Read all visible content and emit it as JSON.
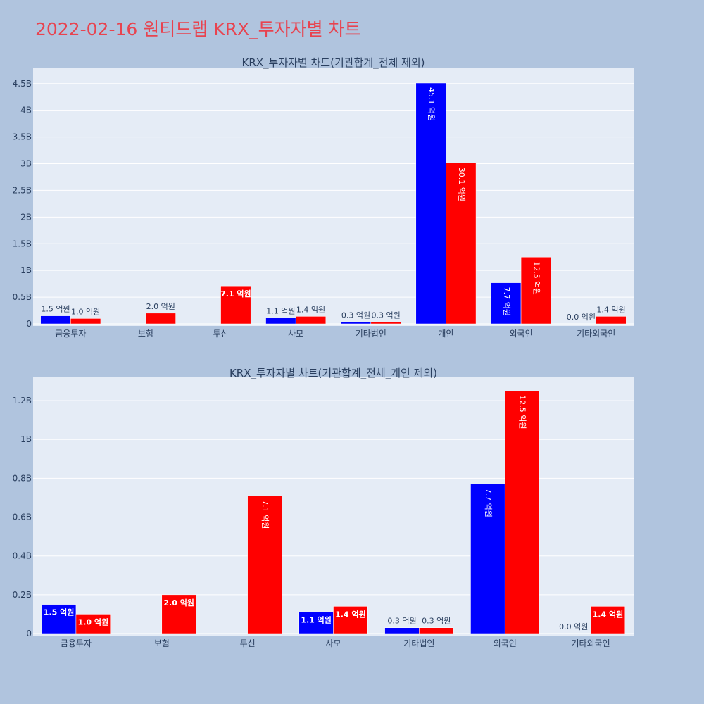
{
  "page": {
    "title": "2022-02-16 원티드랩 KRX_투자자별 차트"
  },
  "colors": {
    "buy": "#0000ff",
    "sell": "#ff0000",
    "plot_bg": "#e5ecf6",
    "page_bg": "#b0c4de"
  },
  "chart_data": [
    {
      "type": "bar",
      "title": "KRX_투자자별 차트(기관합계_전체 제외)",
      "categories": [
        "금융투자",
        "보험",
        "투신",
        "사모",
        "기타법인",
        "개인",
        "외국인",
        "기타외국인"
      ],
      "series": [
        {
          "color": "#0000ff",
          "values": [
            150000000,
            0,
            0,
            110000000,
            30000000,
            4510000000,
            770000000,
            0
          ],
          "labels": [
            "1.5 억원",
            "",
            "",
            "1.1 억원",
            "0.3 억원",
            "45.1 억원",
            "7.7 억원",
            "0.0 억원"
          ]
        },
        {
          "color": "#ff0000",
          "values": [
            100000000,
            200000000,
            710000000,
            140000000,
            30000000,
            3010000000,
            1250000000,
            140000000
          ],
          "labels": [
            "1.0 억원",
            "2.0 억원",
            "7.1 억원",
            "1.4 억원",
            "0.3 억원",
            "30.1 억원",
            "12.5 억원",
            "1.4 억원"
          ]
        }
      ],
      "ylim": [
        0,
        4800000000
      ],
      "yticks": [
        0,
        500000000,
        1000000000,
        1500000000,
        2000000000,
        2500000000,
        3000000000,
        3500000000,
        4000000000,
        4500000000
      ],
      "yticklabels": [
        "0",
        "0.5B",
        "1B",
        "1.5B",
        "2B",
        "2.5B",
        "3B",
        "3.5B",
        "4B",
        "4.5B"
      ],
      "grid": true
    },
    {
      "type": "bar",
      "title": "KRX_투자자별 차트(기관합계_전체_개인 제외)",
      "categories": [
        "금융투자",
        "보험",
        "투신",
        "사모",
        "기타법인",
        "외국인",
        "기타외국인"
      ],
      "series": [
        {
          "color": "#0000ff",
          "values": [
            150000000,
            0,
            0,
            110000000,
            30000000,
            770000000,
            0
          ],
          "labels": [
            "1.5 억원",
            "",
            "",
            "1.1 억원",
            "0.3 억원",
            "7.7 억원",
            "0.0 억원"
          ]
        },
        {
          "color": "#ff0000",
          "values": [
            100000000,
            200000000,
            710000000,
            140000000,
            30000000,
            1250000000,
            140000000
          ],
          "labels": [
            "1.0 억원",
            "2.0 억원",
            "7.1 억원",
            "1.4 억원",
            "0.3 억원",
            "12.5 억원",
            "1.4 억원"
          ]
        }
      ],
      "ylim": [
        0,
        1320000000
      ],
      "yticks": [
        0,
        200000000,
        400000000,
        600000000,
        800000000,
        1000000000,
        1200000000
      ],
      "yticklabels": [
        "0",
        "0.2B",
        "0.4B",
        "0.6B",
        "0.8B",
        "1B",
        "1.2B"
      ],
      "grid": true
    }
  ]
}
